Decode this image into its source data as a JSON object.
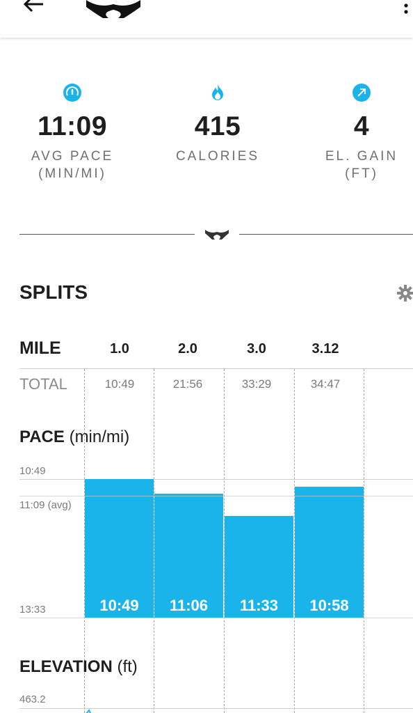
{
  "header": {
    "back_icon": "arrow-left-icon",
    "logo_icon": "under-armour-logo",
    "menu_icon": "more-vertical-icon"
  },
  "stats": [
    {
      "icon": "speedometer-icon",
      "value": "11:09",
      "label": "AVG PACE\n(MIN/MI)"
    },
    {
      "icon": "flame-icon",
      "value": "415",
      "label": "CALORIES"
    },
    {
      "icon": "arrow-up-right-icon",
      "value": "4",
      "label": "EL. GAIN\n(FT)"
    }
  ],
  "colors": {
    "accent": "#1bb4ea",
    "text": "#1e1e1e",
    "muted": "#7a7a7a"
  },
  "splits": {
    "title": "SPLITS",
    "settings_icon": "gear-icon",
    "mile_label": "MILE",
    "miles": [
      "1.0",
      "2.0",
      "3.0",
      "3.12"
    ],
    "total_label": "TOTAL",
    "totals": [
      "10:49",
      "21:56",
      "33:29",
      "34:47"
    ]
  },
  "pace_chart": {
    "title_bold": "PACE",
    "title_unit": " (min/mi)",
    "y_top_label": "10:49",
    "y_avg_label": "11:09 (avg)",
    "y_bottom_label": "13:33",
    "bar_labels": [
      "10:49",
      "11:06",
      "11:33",
      "10:58"
    ]
  },
  "elevation_chart": {
    "title_bold": "ELEVATION",
    "title_unit": " (ft)",
    "y_top_label": "463.2"
  },
  "chart_data": {
    "type": "bar",
    "categories": [
      "1.0",
      "2.0",
      "3.0",
      "3.12"
    ],
    "values_seconds_per_mile": [
      649,
      666,
      693,
      658
    ],
    "values": [
      "10:49",
      "11:06",
      "11:33",
      "10:58"
    ],
    "title": "PACE (min/mi)",
    "ylabel": "min/mi",
    "ylim": [
      "13:33",
      "10:49"
    ],
    "ylim_seconds": [
      813,
      649
    ],
    "average": "11:09"
  }
}
